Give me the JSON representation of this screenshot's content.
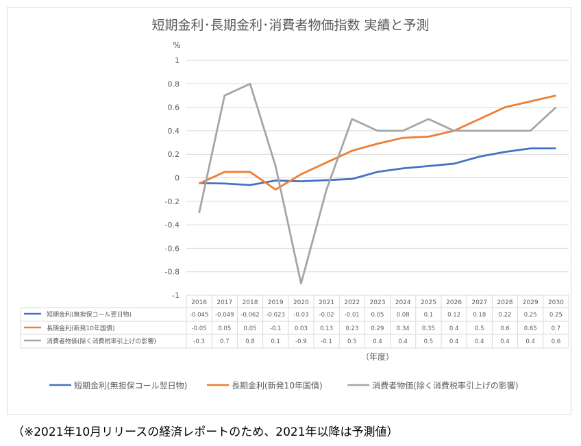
{
  "chart_data": {
    "type": "line",
    "title": "短期金利･長期金利･消費者物価指数 実績と予測",
    "ylabel": "%",
    "xlabel": "（年度）",
    "ylim": [
      -1,
      1
    ],
    "yticks": [
      1,
      0.8,
      0.6,
      0.4,
      0.2,
      0,
      -0.2,
      -0.4,
      -0.6,
      -0.8,
      -1
    ],
    "ytick_labels": [
      "1",
      "0.8",
      "0.6",
      "0.4",
      "0.2",
      "0",
      "-0.2",
      "-0.4",
      "-0.6",
      "-0.8",
      "-1"
    ],
    "grid": true,
    "legend_position": "bottom",
    "categories": [
      "2016",
      "2017",
      "2018",
      "2019",
      "2020",
      "2021",
      "2022",
      "2023",
      "2024",
      "2025",
      "2026",
      "2027",
      "2028",
      "2029",
      "2030"
    ],
    "series": [
      {
        "name": "短期金利(無担保コール翌日物)",
        "color": "#4472c4",
        "values": [
          -0.045,
          -0.049,
          -0.062,
          -0.023,
          -0.03,
          -0.02,
          -0.01,
          0.05,
          0.08,
          0.1,
          0.12,
          0.18,
          0.22,
          0.25,
          0.25
        ],
        "labels": [
          "-0.045",
          "-0.049",
          "-0.062",
          "-0.023",
          "-0.03",
          "-0.02",
          "-0.01",
          "0.05",
          "0.08",
          "0.1",
          "0.12",
          "0.18",
          "0.22",
          "0.25",
          "0.25"
        ]
      },
      {
        "name": "長期金利(新発10年国債)",
        "color": "#ed7d31",
        "values": [
          -0.05,
          0.05,
          0.05,
          -0.1,
          0.03,
          0.13,
          0.23,
          0.29,
          0.34,
          0.35,
          0.4,
          0.5,
          0.6,
          0.65,
          0.7
        ],
        "labels": [
          "-0.05",
          "0.05",
          "0.05",
          "-0.1",
          "0.03",
          "0.13",
          "0.23",
          "0.29",
          "0.34",
          "0.35",
          "0.4",
          "0.5",
          "0.6",
          "0.65",
          "0.7"
        ]
      },
      {
        "name": "消費者物価(除く消費税率引上げの影響)",
        "color": "#a5a5a5",
        "values": [
          -0.3,
          0.7,
          0.8,
          0.1,
          -0.9,
          -0.1,
          0.5,
          0.4,
          0.4,
          0.5,
          0.4,
          0.4,
          0.4,
          0.4,
          0.6
        ],
        "labels": [
          "-0.3",
          "0.7",
          "0.8",
          "0.1",
          "-0.9",
          "-0.1",
          "0.5",
          "0.4",
          "0.4",
          "0.5",
          "0.4",
          "0.4",
          "0.4",
          "0.4",
          "0.6"
        ]
      }
    ]
  },
  "footnote": "（※2021年10月リリースの経済レポートのため、2021年以降は予測値）"
}
